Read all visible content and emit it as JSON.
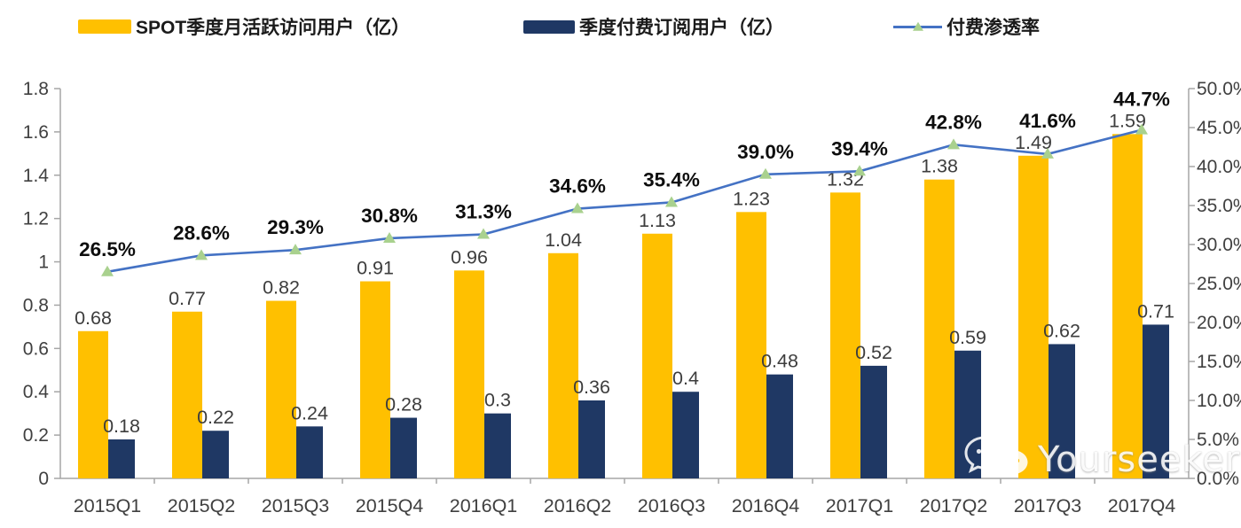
{
  "chart_data": {
    "type": "combo",
    "grid": false,
    "legend_position": "top",
    "categories": [
      "2015Q1",
      "2015Q2",
      "2015Q3",
      "2015Q4",
      "2016Q1",
      "2016Q2",
      "2016Q3",
      "2016Q4",
      "2017Q1",
      "2017Q2",
      "2017Q3",
      "2017Q4"
    ],
    "series": [
      {
        "name": "SPOT季度月活跃访问用户（亿）",
        "type": "bar",
        "axis": "left",
        "color": "#FFC000",
        "values": [
          0.68,
          0.77,
          0.82,
          0.91,
          0.96,
          1.04,
          1.13,
          1.23,
          1.32,
          1.38,
          1.49,
          1.59
        ],
        "labels": [
          "0.68",
          "0.77",
          "0.82",
          "0.91",
          "0.96",
          "1.04",
          "1.13",
          "1.23",
          "1.32",
          "1.38",
          "1.49",
          "1.59"
        ]
      },
      {
        "name": "季度付费订阅用户（亿）",
        "type": "bar",
        "axis": "left",
        "color": "#1F3864",
        "values": [
          0.18,
          0.22,
          0.24,
          0.28,
          0.3,
          0.36,
          0.4,
          0.48,
          0.52,
          0.59,
          0.62,
          0.71
        ],
        "labels": [
          "0.18",
          "0.22",
          "0.24",
          "0.28",
          "0.3",
          "0.36",
          "0.4",
          "0.48",
          "0.52",
          "0.59",
          "0.62",
          "0.71"
        ]
      },
      {
        "name": "付费渗透率",
        "type": "line",
        "axis": "right",
        "color": "#4472C4",
        "marker": "triangle",
        "marker_color": "#A9D18E",
        "values": [
          26.5,
          28.6,
          29.3,
          30.8,
          31.3,
          34.6,
          35.4,
          39.0,
          39.4,
          42.8,
          41.6,
          44.7
        ],
        "labels": [
          "26.5%",
          "28.6%",
          "29.3%",
          "30.8%",
          "31.3%",
          "34.6%",
          "35.4%",
          "39.0%",
          "39.4%",
          "42.8%",
          "41.6%",
          "44.7%"
        ]
      }
    ],
    "left_axis": {
      "min": 0,
      "max": 1.8,
      "ticks": [
        {
          "v": 1.8,
          "label": "1.8"
        },
        {
          "v": 1.6,
          "label": "1.6"
        },
        {
          "v": 1.4,
          "label": "1.4"
        },
        {
          "v": 1.2,
          "label": "1.2"
        },
        {
          "v": 1,
          "label": "1"
        },
        {
          "v": 0.8,
          "label": "0.8"
        },
        {
          "v": 0.6,
          "label": "0.6"
        },
        {
          "v": 0.4,
          "label": "0.4"
        },
        {
          "v": 0.2,
          "label": "0.2"
        },
        {
          "v": 0,
          "label": "0"
        }
      ]
    },
    "right_axis": {
      "min": 0,
      "max": 50,
      "ticks": [
        {
          "v": 50,
          "label": "50.0%"
        },
        {
          "v": 45,
          "label": "45.0%"
        },
        {
          "v": 40,
          "label": "40.0%"
        },
        {
          "v": 35,
          "label": "35.0%"
        },
        {
          "v": 30,
          "label": "30.0%"
        },
        {
          "v": 25,
          "label": "25.0%"
        },
        {
          "v": 20,
          "label": "20.0%"
        },
        {
          "v": 15,
          "label": "15.0%"
        },
        {
          "v": 10,
          "label": "10.0%"
        },
        {
          "v": 5,
          "label": "5.0%"
        },
        {
          "v": 0,
          "label": "0.0%"
        }
      ]
    }
  },
  "colors": {
    "bar_mau": "#FFC000",
    "bar_subs": "#1F3864",
    "line": "#4472C4",
    "marker": "#A9D18E",
    "axis": "#A6A6A6",
    "tick_text": "#404040"
  },
  "watermark": {
    "text": "Yourseeker",
    "icon": "wechat-icon"
  }
}
